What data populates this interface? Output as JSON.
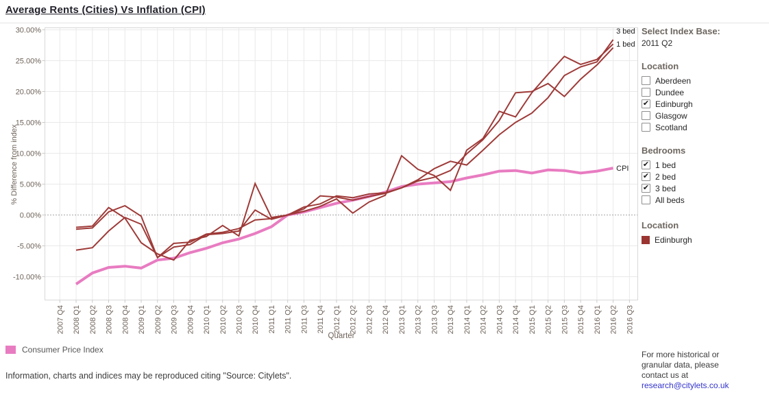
{
  "right_panel": {
    "index_base_label": "Select Index Base:",
    "index_base_value": "2011 Q2",
    "location_filter": {
      "header": "Location",
      "options": [
        {
          "label": "Aberdeen",
          "checked": false
        },
        {
          "label": "Dundee",
          "checked": false
        },
        {
          "label": "Edinburgh",
          "checked": true
        },
        {
          "label": "Glasgow",
          "checked": false
        },
        {
          "label": "Scotland",
          "checked": false
        }
      ]
    },
    "bedrooms_filter": {
      "header": "Bedrooms",
      "options": [
        {
          "label": "1 bed",
          "checked": true
        },
        {
          "label": "2 bed",
          "checked": true
        },
        {
          "label": "3 bed",
          "checked": true
        },
        {
          "label": "All beds",
          "checked": false
        }
      ]
    },
    "color_legend": {
      "header": "Location",
      "items": [
        {
          "label": "Edinburgh",
          "color": "#9a3531"
        }
      ]
    },
    "contact": {
      "text_lines": [
        "For more historical or",
        "granular data, please",
        "contact us at"
      ],
      "link": "research@citylets.co.uk"
    }
  },
  "legend": {
    "cpi_label": "Consumer Price Index",
    "cpi_color": "#e87cc1"
  },
  "footer": "Information, charts and indices may be reproduced citing \"Source: Citylets\".",
  "chart_data": {
    "type": "line",
    "title": "Average Rents (Cities) Vs Inflation (CPI)",
    "xlabel": "Quarter",
    "ylabel": "% Difference from index",
    "ylim": [
      -13.5,
      30.5
    ],
    "grid": true,
    "zero_line": "dotted",
    "legend_position": "bottom-left",
    "yticks": [
      30,
      25,
      20,
      15,
      10,
      5,
      0,
      -5,
      -10
    ],
    "ytick_labels": [
      "30.00%",
      "25.00%",
      "20.00%",
      "15.00%",
      "10.00%",
      "5.00%",
      "0.00%",
      "-5.00%",
      "-10.00%"
    ],
    "categories": [
      "2007 Q4",
      "2008 Q1",
      "2008 Q2",
      "2008 Q3",
      "2008 Q4",
      "2009 Q1",
      "2009 Q2",
      "2009 Q3",
      "2009 Q4",
      "2010 Q1",
      "2010 Q2",
      "2010 Q3",
      "2010 Q4",
      "2011 Q1",
      "2011 Q2",
      "2011 Q3",
      "2011 Q4",
      "2012 Q1",
      "2012 Q2",
      "2012 Q3",
      "2012 Q4",
      "2013 Q1",
      "2013 Q2",
      "2013 Q3",
      "2013 Q4",
      "2014 Q1",
      "2014 Q2",
      "2014 Q3",
      "2014 Q4",
      "2015 Q1",
      "2015 Q2",
      "2015 Q3",
      "2015 Q4",
      "2016 Q1",
      "2016 Q2",
      "2016 Q3"
    ],
    "x_start_index": 1,
    "series": [
      {
        "name": "1 bed",
        "color": "#9e3a38",
        "stroke_width": 2,
        "end_label": "1 bed",
        "end_label_dy": 4,
        "values": [
          -2.0,
          -1.8,
          1.2,
          -0.5,
          -4.5,
          -6.3,
          -7.3,
          -4.1,
          -3.5,
          -1.7,
          -3.4,
          5.1,
          -0.4,
          0.0,
          0.6,
          1.4,
          2.6,
          0.3,
          2.1,
          3.2,
          9.6,
          7.4,
          6.4,
          4.0,
          10.5,
          12.4,
          16.8,
          15.9,
          19.8,
          22.8,
          25.7,
          24.4,
          25.2,
          27.7
        ]
      },
      {
        "name": "2 bed",
        "color": "#9e3a38",
        "stroke_width": 2,
        "end_label": "",
        "end_label_dy": 0,
        "values": [
          -2.3,
          -2.1,
          0.5,
          1.5,
          -0.2,
          -6.9,
          -5.2,
          -4.8,
          -3.2,
          -3.0,
          -2.6,
          0.8,
          -0.7,
          0.0,
          1.0,
          3.1,
          2.9,
          2.4,
          3.0,
          3.5,
          4.4,
          5.5,
          6.1,
          7.2,
          9.9,
          12.2,
          15.3,
          19.8,
          20.0,
          21.3,
          19.2,
          22.0,
          24.3,
          27.1
        ]
      },
      {
        "name": "3 bed",
        "color": "#9e3a38",
        "stroke_width": 2,
        "end_label": "3 bed",
        "end_label_dy": -9,
        "values": [
          -5.7,
          -5.3,
          -2.6,
          -0.4,
          -1.5,
          -6.9,
          -4.6,
          -4.4,
          -3.1,
          -2.8,
          -2.2,
          -0.8,
          -0.6,
          0.0,
          1.3,
          1.8,
          3.1,
          2.8,
          3.4,
          3.6,
          4.4,
          5.7,
          7.5,
          8.7,
          8.1,
          10.5,
          13.0,
          15.0,
          16.5,
          19.0,
          22.6,
          24.0,
          24.8,
          28.4
        ]
      },
      {
        "name": "Consumer Price Index",
        "color": "#e87cc1",
        "stroke_width": 4,
        "end_label": "CPI",
        "end_label_dy": 4,
        "values": [
          -11.2,
          -9.4,
          -8.5,
          -8.3,
          -8.6,
          -7.3,
          -7.0,
          -6.1,
          -5.4,
          -4.5,
          -3.9,
          -3.0,
          -1.9,
          0.0,
          0.5,
          1.2,
          1.9,
          2.4,
          3.0,
          3.7,
          4.6,
          5.0,
          5.2,
          5.4,
          6.0,
          6.5,
          7.1,
          7.2,
          6.8,
          7.3,
          7.2,
          6.8,
          7.1,
          7.6
        ]
      }
    ]
  }
}
